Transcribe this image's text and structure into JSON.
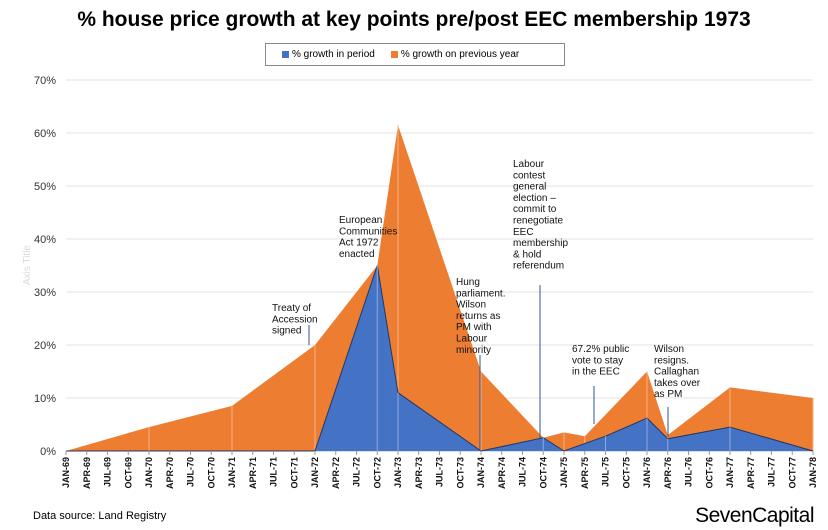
{
  "page": {
    "source_label": "Data source: Land Registry",
    "brand": "SevenCapital"
  },
  "chart_data": {
    "type": "area",
    "title": "% house price growth at key points pre/post EEC membership 1973",
    "xlabel": "",
    "ylabel": "Axis Title",
    "ylim": [
      0,
      70
    ],
    "yticks": [
      "0%",
      "10%",
      "20%",
      "30%",
      "40%",
      "50%",
      "60%",
      "70%"
    ],
    "grid": true,
    "legend_position": "top",
    "categories": [
      "JAN-69",
      "APR-69",
      "JUL-69",
      "OCT-69",
      "JAN-70",
      "APR-70",
      "JUL-70",
      "OCT-70",
      "JAN-71",
      "APR-71",
      "JUL-71",
      "OCT-71",
      "JAN-72",
      "APR-72",
      "JUL-72",
      "OCT-72",
      "JAN-73",
      "APR-73",
      "JUL-73",
      "OCT-73",
      "JAN-74",
      "APR-74",
      "JUL-74",
      "OCT-74",
      "JAN-75",
      "APR-75",
      "JUL-75",
      "OCT-75",
      "JAN-76",
      "APR-76",
      "JUL-76",
      "OCT-76",
      "JAN-77",
      "APR-77",
      "JUL-77",
      "OCT-77",
      "JAN-78"
    ],
    "series": [
      {
        "name": "% growth in period",
        "color": "#4472c4",
        "points": [
          [
            0,
            0
          ],
          [
            12,
            0
          ],
          [
            15,
            35
          ],
          [
            16,
            11
          ],
          [
            20,
            0
          ],
          [
            23,
            2.5
          ],
          [
            24,
            0
          ],
          [
            26,
            2.8
          ],
          [
            28,
            6.2
          ],
          [
            29,
            2.3
          ],
          [
            32,
            4.5
          ],
          [
            36,
            0
          ]
        ]
      },
      {
        "name": "% growth on previous year",
        "color": "#ed7d31",
        "points": [
          [
            0,
            0
          ],
          [
            4,
            4.5
          ],
          [
            8,
            8.5
          ],
          [
            12,
            20
          ],
          [
            15,
            35
          ],
          [
            16,
            61.5
          ],
          [
            20,
            15
          ],
          [
            23,
            2.5
          ],
          [
            24,
            3.5
          ],
          [
            25,
            2.8
          ],
          [
            28,
            15
          ],
          [
            29,
            3
          ],
          [
            32,
            12
          ],
          [
            36,
            10
          ]
        ]
      }
    ],
    "annotations": [
      {
        "lines": [
          "Treaty of",
          "Accession",
          "signed"
        ]
      },
      {
        "lines": [
          "European",
          "Communities",
          "Act 1972",
          "enacted"
        ]
      },
      {
        "lines": [
          "Hung",
          "parliament.",
          "Wilson",
          "returns as",
          "PM with",
          "Labour",
          "minority"
        ]
      },
      {
        "lines": [
          "Labour",
          "contest",
          "general",
          "election –",
          "commit to",
          "renegotiate",
          "EEC",
          "membership",
          "& hold",
          "referendum"
        ]
      },
      {
        "lines": [
          "67.2% public",
          "vote to stay",
          "in the EEC"
        ]
      },
      {
        "lines": [
          "Wilson",
          "resigns.",
          "Callaghan",
          "takes over",
          "as PM"
        ]
      }
    ]
  }
}
